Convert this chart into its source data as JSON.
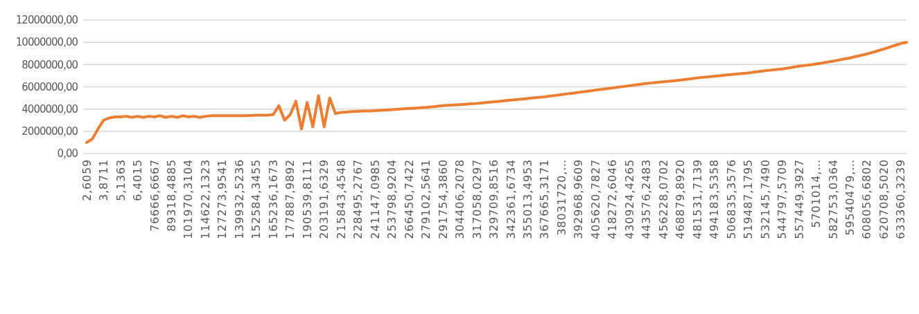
{
  "chart_data": {
    "type": "line",
    "categories": [
      "2,6059",
      null,
      null,
      "3,8711",
      null,
      null,
      "5,1363",
      null,
      null,
      "6,4015",
      null,
      null,
      "76666,6667",
      null,
      null,
      "89318,4885",
      null,
      null,
      "101970,3104",
      null,
      null,
      "114622,1323",
      null,
      null,
      "127273,9541",
      null,
      null,
      "139932,5236",
      null,
      null,
      "152584,3455",
      null,
      null,
      "165236,1673",
      null,
      null,
      "177887,9892",
      null,
      null,
      "190539,8111",
      null,
      null,
      "203191,6329",
      null,
      null,
      "215843,4548",
      null,
      null,
      "228495,2767",
      null,
      null,
      "241147,0985",
      null,
      null,
      "253798,9204",
      null,
      null,
      "266450,7422",
      null,
      null,
      "279102,5641",
      null,
      null,
      "291754,3860",
      null,
      null,
      "304406,2078",
      null,
      null,
      "317058,0297",
      null,
      null,
      "329709,8516",
      null,
      null,
      "342361,6734",
      null,
      null,
      "355013,4953",
      null,
      null,
      "367665,3171",
      null,
      null,
      "38031720,…",
      null,
      null,
      "392968,9609",
      null,
      null,
      "405620,7827",
      null,
      null,
      "418272,6046",
      null,
      null,
      "430924,4265",
      null,
      null,
      "443576,2483",
      null,
      null,
      "456228,0702",
      null,
      null,
      "468879,8920",
      null,
      null,
      "481531,7139",
      null,
      null,
      "494183,5358",
      null,
      null,
      "506835,3576",
      null,
      null,
      "519487,1795",
      null,
      null,
      "532145,7490",
      null,
      null,
      "544797,5709",
      null,
      null,
      "557449,3927",
      null,
      null,
      "5701014,…",
      null,
      null,
      "582753,0364",
      null,
      null,
      "59540479,…",
      null,
      null,
      "608056,6802",
      null,
      null,
      "620708,5020",
      null,
      null,
      "633360,3239",
      null
    ],
    "series": [
      {
        "color": "#ed7d31",
        "values": [
          1000000,
          1300000,
          2200000,
          3000000,
          3200000,
          3300000,
          3300000,
          3350000,
          3250000,
          3350000,
          3250000,
          3350000,
          3300000,
          3400000,
          3250000,
          3350000,
          3250000,
          3400000,
          3300000,
          3350000,
          3250000,
          3350000,
          3400000,
          3400000,
          3400000,
          3400000,
          3400000,
          3400000,
          3400000,
          3420000,
          3450000,
          3450000,
          3450000,
          3500000,
          4300000,
          3000000,
          3500000,
          4700000,
          2200000,
          4600000,
          2400000,
          5200000,
          2400000,
          5000000,
          3600000,
          3700000,
          3730000,
          3770000,
          3800000,
          3820000,
          3830000,
          3850000,
          3880000,
          3920000,
          3950000,
          3980000,
          4020000,
          4050000,
          4080000,
          4120000,
          4150000,
          4200000,
          4250000,
          4300000,
          4330000,
          4370000,
          4400000,
          4430000,
          4470000,
          4500000,
          4550000,
          4600000,
          4650000,
          4700000,
          4750000,
          4800000,
          4850000,
          4900000,
          4950000,
          5000000,
          5050000,
          5100000,
          5170000,
          5230000,
          5300000,
          5370000,
          5430000,
          5500000,
          5570000,
          5630000,
          5700000,
          5770000,
          5830000,
          5900000,
          5970000,
          6030000,
          6100000,
          6170000,
          6230000,
          6300000,
          6350000,
          6400000,
          6450000,
          6500000,
          6550000,
          6600000,
          6670000,
          6730000,
          6800000,
          6850000,
          6900000,
          6950000,
          7000000,
          7050000,
          7100000,
          7150000,
          7200000,
          7250000,
          7320000,
          7380000,
          7450000,
          7500000,
          7550000,
          7600000,
          7680000,
          7770000,
          7850000,
          7920000,
          7980000,
          8050000,
          8130000,
          8220000,
          8300000,
          8400000,
          8500000,
          8600000,
          8720000,
          8830000,
          8950000,
          9100000,
          9250000,
          9400000,
          9570000,
          9730000,
          9900000,
          10000000
        ]
      }
    ],
    "ylim": [
      0,
      12000000
    ],
    "yticks": [
      {
        "value": 0,
        "label": "0,00"
      },
      {
        "value": 2000000,
        "label": "2000000,00"
      },
      {
        "value": 4000000,
        "label": "4000000,00"
      },
      {
        "value": 6000000,
        "label": "6000000,00"
      },
      {
        "value": 8000000,
        "label": "8000000,00"
      },
      {
        "value": 10000000,
        "label": "10000000,00"
      },
      {
        "value": 12000000,
        "label": "12000000,00"
      }
    ],
    "grid": "y",
    "marker": "none",
    "line_style": "solid"
  }
}
